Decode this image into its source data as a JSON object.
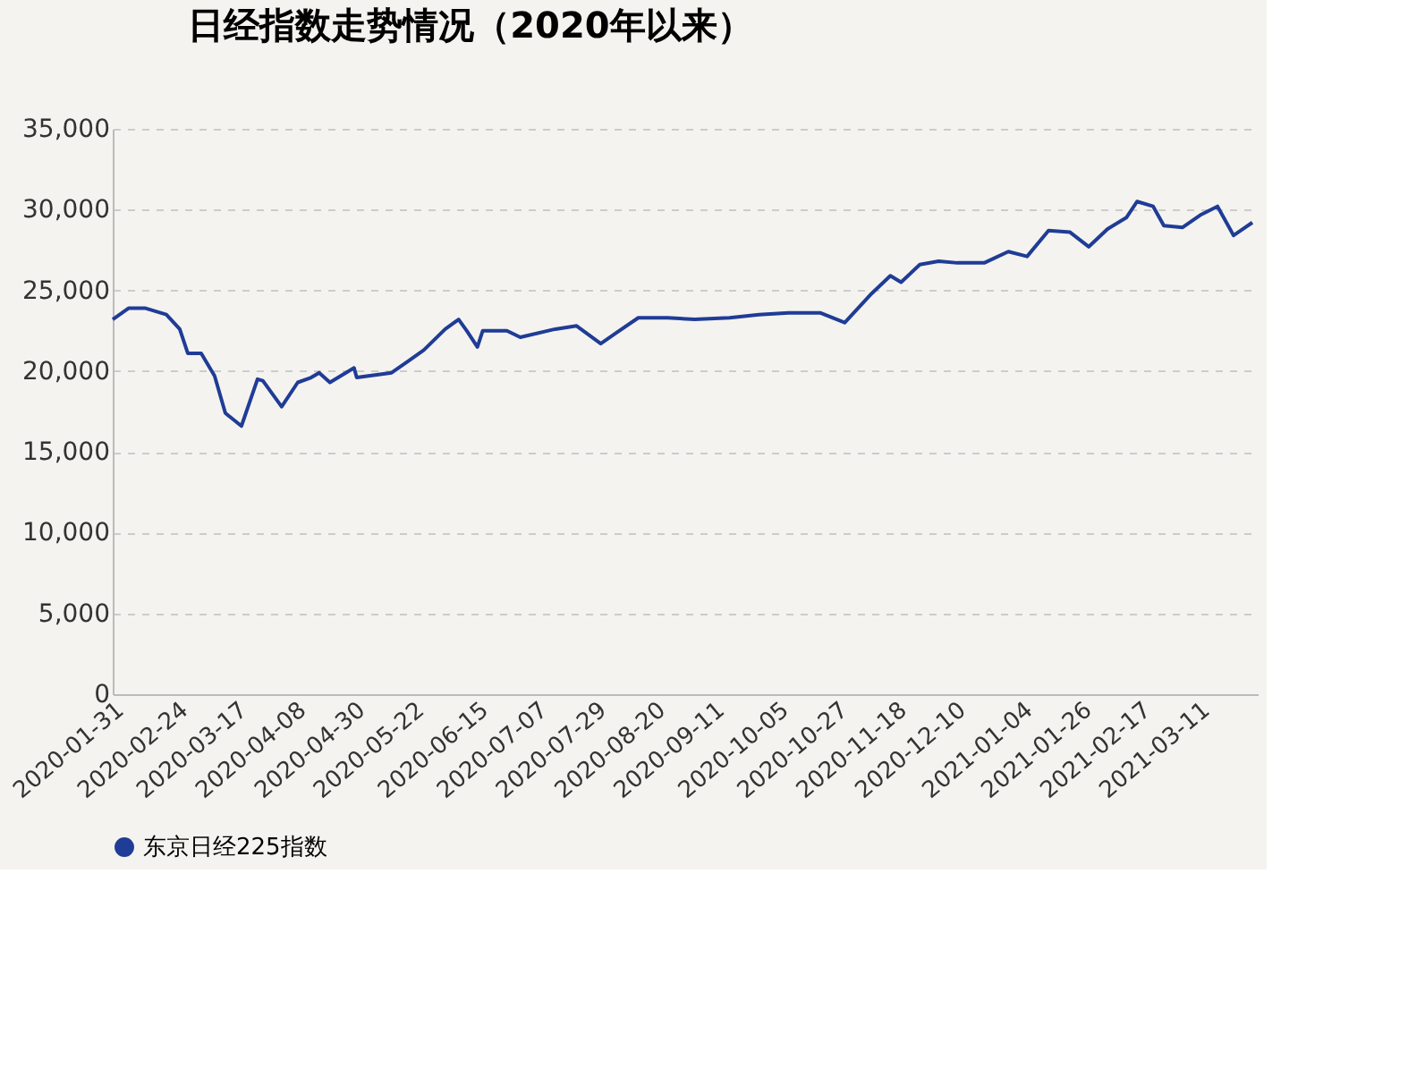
{
  "chart_data": {
    "type": "line",
    "title": "日经指数走势情况（2020年以来）",
    "x": [
      "2020-01-31",
      "2020-02-06",
      "2020-02-12",
      "2020-02-20",
      "2020-02-25",
      "2020-02-28",
      "2020-03-04",
      "2020-03-09",
      "2020-03-13",
      "2020-03-16",
      "2020-03-19",
      "2020-03-25",
      "2020-03-27",
      "2020-04-03",
      "2020-04-09",
      "2020-04-14",
      "2020-04-17",
      "2020-04-21",
      "2020-04-30",
      "2020-05-01",
      "2020-05-14",
      "2020-05-20",
      "2020-05-26",
      "2020-06-03",
      "2020-06-08",
      "2020-06-11",
      "2020-06-15",
      "2020-06-17",
      "2020-06-26",
      "2020-07-01",
      "2020-07-14",
      "2020-07-22",
      "2020-07-31",
      "2020-08-06",
      "2020-08-14",
      "2020-08-25",
      "2020-09-04",
      "2020-09-17",
      "2020-09-28",
      "2020-10-09",
      "2020-10-21",
      "2020-10-30",
      "2020-11-09",
      "2020-11-16",
      "2020-11-20",
      "2020-11-27",
      "2020-12-04",
      "2020-12-11",
      "2020-12-21",
      "2020-12-30",
      "2021-01-06",
      "2021-01-14",
      "2021-01-22",
      "2021-01-29",
      "2021-02-05",
      "2021-02-12",
      "2021-02-16",
      "2021-02-22",
      "2021-02-26",
      "2021-03-05",
      "2021-03-12",
      "2021-03-18",
      "2021-03-24",
      "2021-03-31"
    ],
    "series": [
      {
        "name": "东京日经225指数",
        "color": "#1f3c96",
        "values": [
          23200,
          23900,
          23900,
          23500,
          22600,
          21100,
          21100,
          19700,
          17400,
          17000,
          16600,
          19500,
          19400,
          17800,
          19300,
          19600,
          19900,
          19300,
          20200,
          19600,
          19900,
          20600,
          21300,
          22600,
          23200,
          22500,
          21500,
          22500,
          22500,
          22100,
          22600,
          22800,
          21700,
          22400,
          23300,
          23300,
          23200,
          23300,
          23500,
          23600,
          23600,
          23000,
          24800,
          25900,
          25500,
          26600,
          26800,
          26700,
          26700,
          27400,
          27100,
          28700,
          28600,
          27700,
          28800,
          29500,
          30500,
          30200,
          29000,
          28900,
          29700,
          30200,
          28400,
          29200
        ]
      }
    ],
    "xlim": [
      "2020-01-31",
      "2021-04-02"
    ],
    "xticks": [
      "2020-01-31",
      "2020-02-24",
      "2020-03-17",
      "2020-04-08",
      "2020-04-30",
      "2020-05-22",
      "2020-06-15",
      "2020-07-07",
      "2020-07-29",
      "2020-08-20",
      "2020-09-11",
      "2020-10-05",
      "2020-10-27",
      "2020-11-18",
      "2020-12-10",
      "2021-01-04",
      "2021-01-26",
      "2021-02-17",
      "2021-03-11"
    ],
    "ylim": [
      0,
      35000
    ],
    "yticks": [
      0,
      {
        "value": 5000,
        "label": "5,000"
      },
      {
        "value": 10000,
        "label": "10,000"
      },
      {
        "value": 15000,
        "label": "15,000"
      },
      {
        "value": 20000,
        "label": "20,000"
      },
      {
        "value": 25000,
        "label": "25,000"
      },
      {
        "value": 30000,
        "label": "30,000"
      },
      {
        "value": 35000,
        "label": "35,000"
      }
    ],
    "grid": "y",
    "legend": "bottom",
    "marker": "none",
    "line_style": "solid"
  }
}
